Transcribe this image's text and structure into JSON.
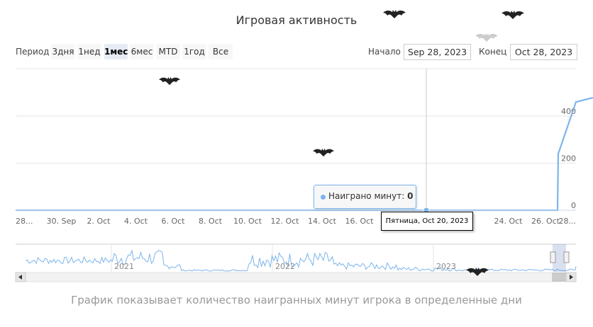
{
  "chart_data": {
    "type": "line",
    "title": "Игровая активность",
    "caption": "График показывает количество наигранных минут игрока в определенные дни",
    "series": [
      {
        "name": "Наиграно минут",
        "x": [
          "Sep 28",
          "Sep 30",
          "Oct 2",
          "Oct 4",
          "Oct 6",
          "Oct 8",
          "Oct 10",
          "Oct 12",
          "Oct 14",
          "Oct 16",
          "Oct 18",
          "Oct 20",
          "Oct 22",
          "Oct 24",
          "Oct 26",
          "Oct 27",
          "Oct 28"
        ],
        "values": [
          0,
          0,
          0,
          0,
          0,
          0,
          0,
          0,
          0,
          0,
          0,
          0,
          0,
          0,
          0,
          240,
          460
        ]
      }
    ],
    "x_tick_labels": [
      "28...",
      "30. Sep",
      "2. Oct",
      "4. Oct",
      "6. Oct",
      "8. Oct",
      "10. Oct",
      "12. Oct",
      "14. Oct",
      "16. Oct",
      "1",
      "",
      "",
      "24. Oct",
      "26. Oct",
      "28..."
    ],
    "y_tick_labels": [
      "0",
      "200",
      "400"
    ],
    "ylim": [
      0,
      460
    ],
    "grid": true,
    "tooltip": {
      "series_name": "Наиграно минут",
      "value": "0",
      "date_label": "Пятница, Oct 20, 2023"
    },
    "navigator": {
      "year_labels": [
        "2021",
        "2022",
        "2023"
      ]
    }
  },
  "range_selector": {
    "label": "Период",
    "buttons": [
      "3дня",
      "1нед",
      "1мес",
      "6мес",
      "MTD",
      "1год",
      "Все"
    ],
    "active": "1мес"
  },
  "date_range": {
    "start_label": "Начало",
    "start_value": "Sep 28, 2023",
    "end_label": "Конец",
    "end_value": "Oct 28, 2023"
  },
  "colors": {
    "series": "#7cb5ec",
    "grid": "#e6e6e6",
    "bat": "#222222",
    "bat_faded": "#cccccc"
  }
}
